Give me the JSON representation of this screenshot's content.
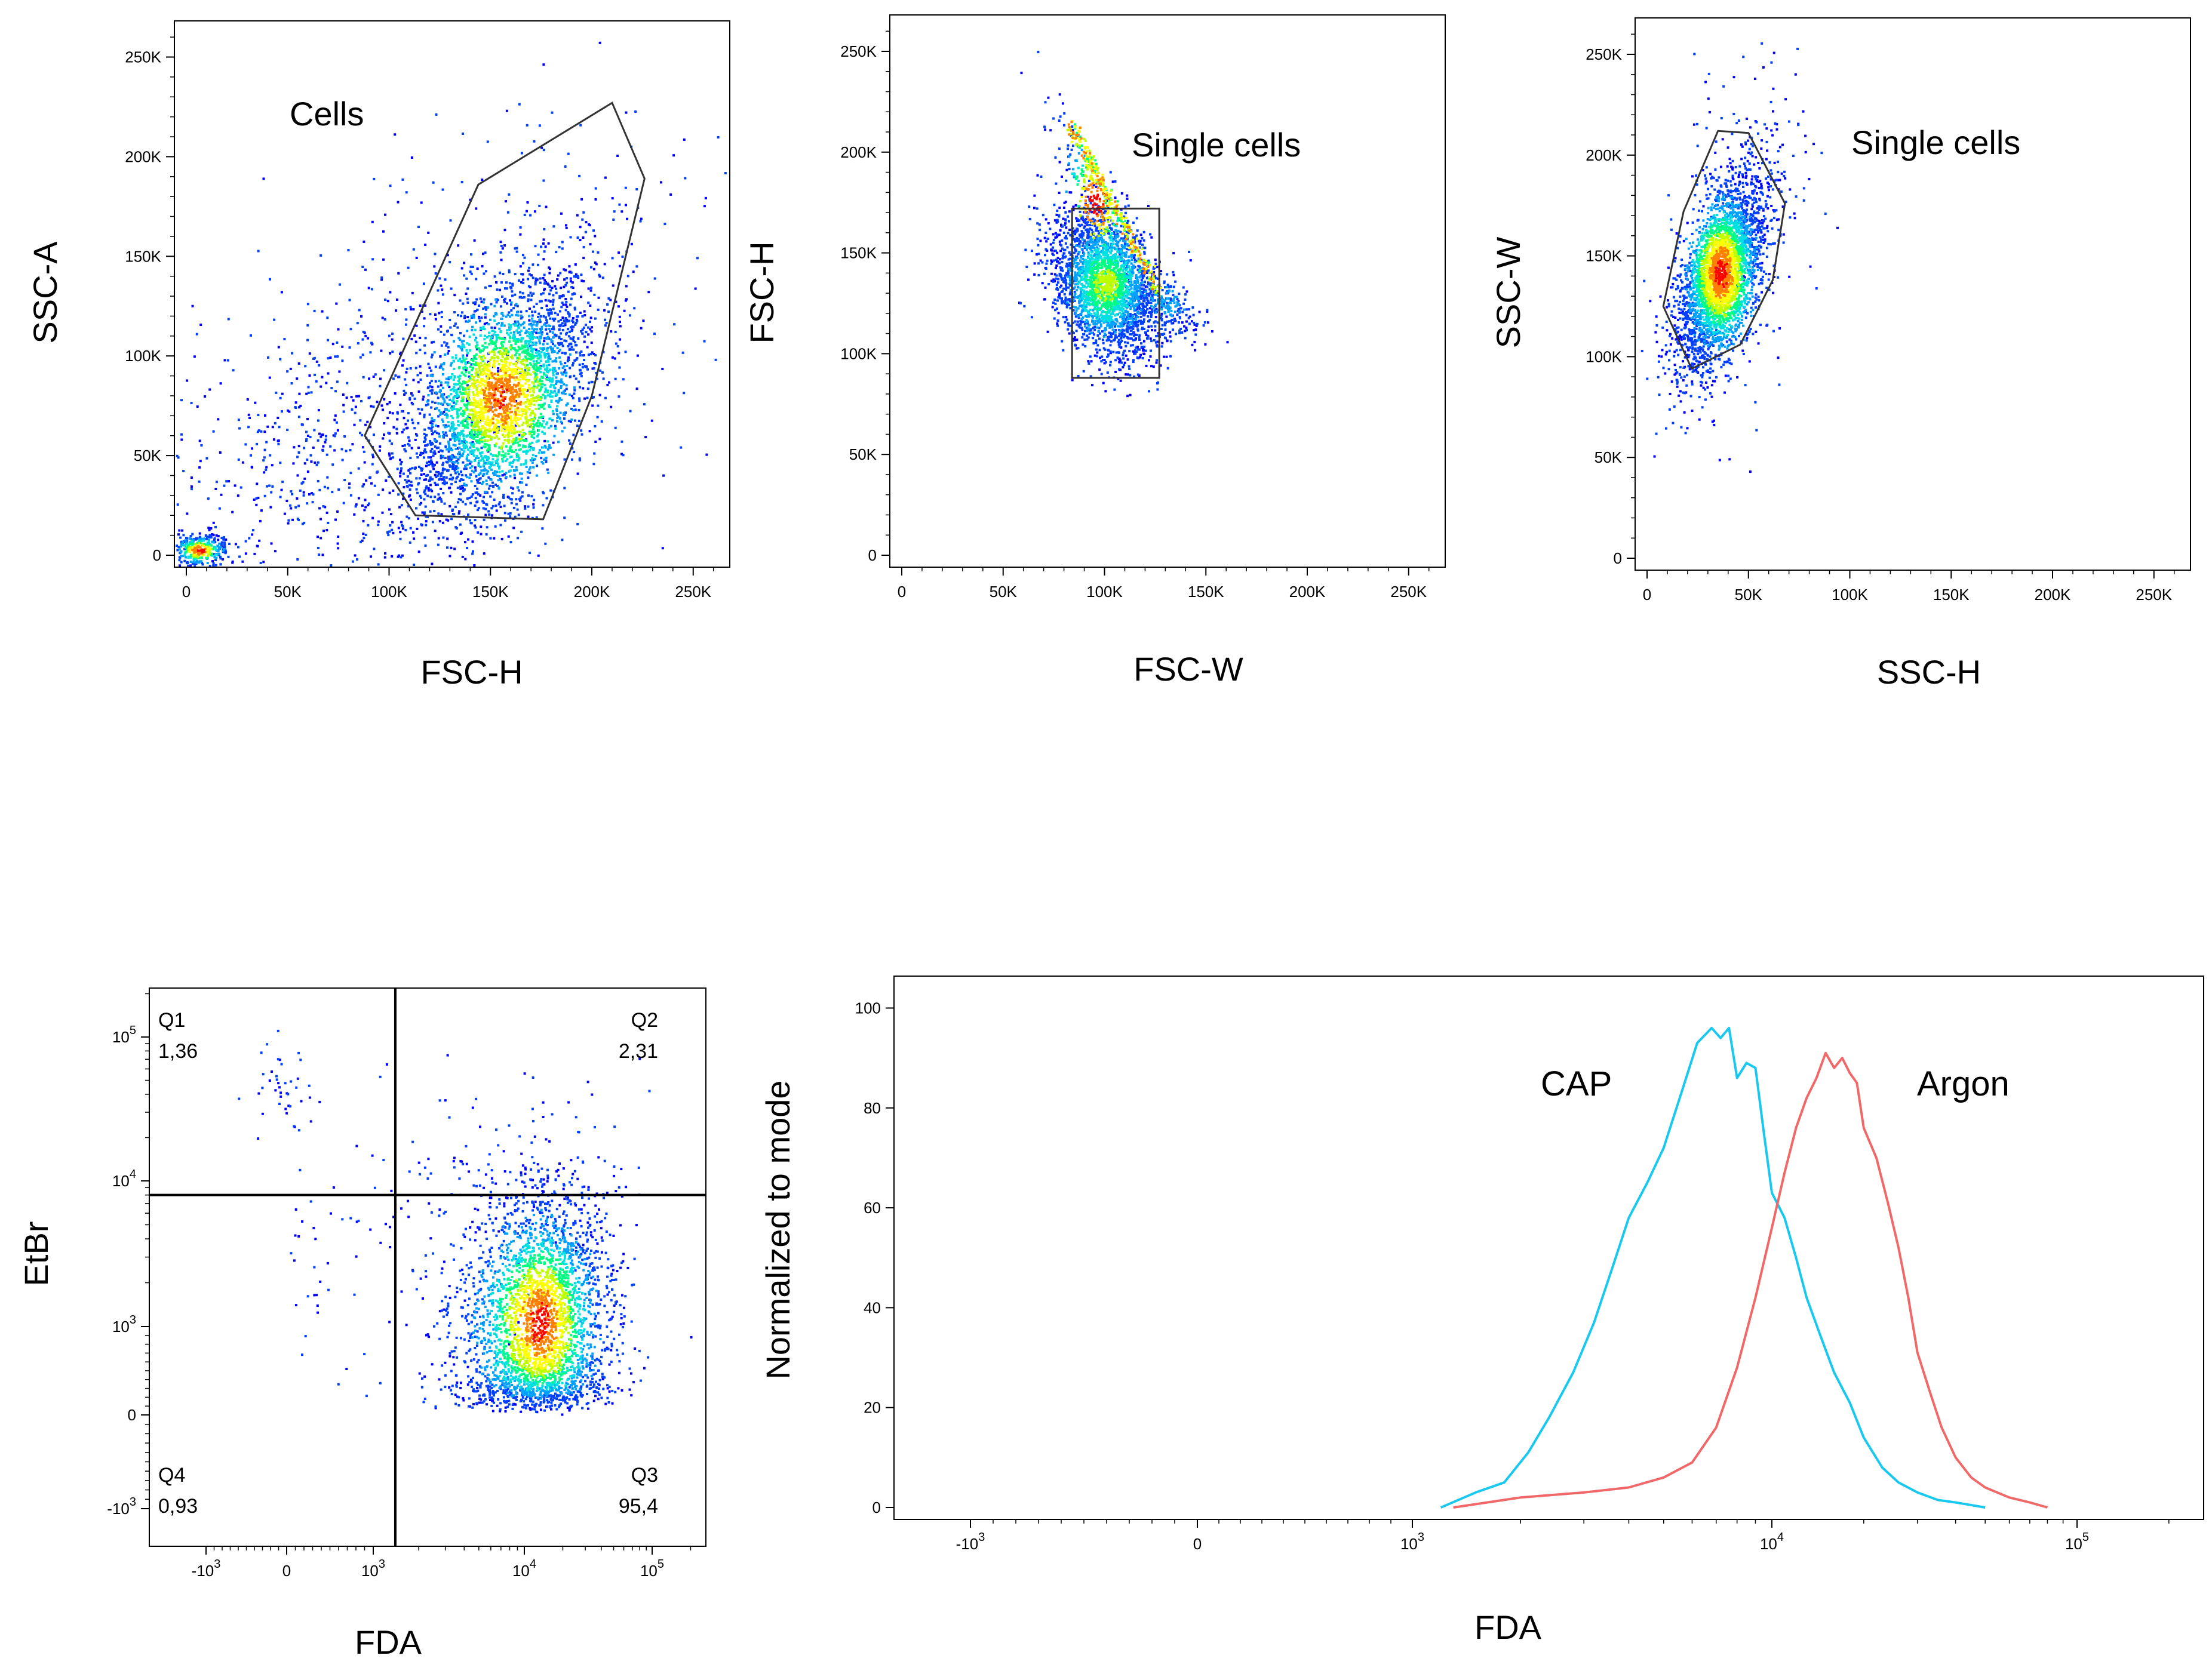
{
  "figure": {
    "colors": {
      "density": [
        "#0000ff",
        "#0040ff",
        "#00a0ff",
        "#00e0e0",
        "#00ff80",
        "#c0ff00",
        "#ffff00",
        "#ff8000",
        "#ff0000"
      ],
      "gate": "#333333",
      "cap_line": "#18c8ee",
      "argon_line": "#f06868",
      "axis": "#000000"
    }
  },
  "chart_data": [
    {
      "id": "p1",
      "type": "scatter",
      "xlabel": "FSC-H",
      "ylabel": "SSC-A",
      "xlim": [
        0,
        262144
      ],
      "ylim": [
        0,
        262144
      ],
      "xticks": [
        {
          "v": 0,
          "l": "0"
        },
        {
          "v": 50000,
          "l": "50K"
        },
        {
          "v": 100000,
          "l": "100K"
        },
        {
          "v": 150000,
          "l": "150K"
        },
        {
          "v": 200000,
          "l": "200K"
        },
        {
          "v": 250000,
          "l": "250K"
        }
      ],
      "yticks": [
        {
          "v": 0,
          "l": "0"
        },
        {
          "v": 50000,
          "l": "50K"
        },
        {
          "v": 100000,
          "l": "100K"
        },
        {
          "v": 150000,
          "l": "150K"
        },
        {
          "v": 200000,
          "l": "200K"
        },
        {
          "v": 250000,
          "l": "250K"
        }
      ],
      "gate": {
        "label": "Cells",
        "shape": "polygon",
        "points": [
          [
            88000,
            60000
          ],
          [
            144000,
            186000
          ],
          [
            210000,
            227000
          ],
          [
            226000,
            189000
          ],
          [
            200000,
            80000
          ],
          [
            176000,
            18000
          ],
          [
            113000,
            20000
          ]
        ]
      },
      "populations": [
        {
          "n": 3200,
          "cx": 155000,
          "cy": 80000,
          "sx": 22000,
          "sy": 30000,
          "rho": 0.5,
          "peak": 0.85
        },
        {
          "n": 700,
          "cx": 130000,
          "cy": 95000,
          "sx": 60000,
          "sy": 60000,
          "rho": 0.4,
          "peak": 0.0
        },
        {
          "n": 500,
          "cx": 60000,
          "cy": 40000,
          "sx": 55000,
          "sy": 45000,
          "rho": 0.5,
          "peak": 0.0
        },
        {
          "n": 350,
          "cx": 6000,
          "cy": 3000,
          "sx": 7000,
          "sy": 4000,
          "rho": 0,
          "peak": 0.9
        }
      ]
    },
    {
      "id": "p2",
      "type": "scatter",
      "xlabel": "FSC-W",
      "ylabel": "FSC-H",
      "xlim": [
        0,
        262144
      ],
      "ylim": [
        0,
        262144
      ],
      "xticks": [
        {
          "v": 0,
          "l": "0"
        },
        {
          "v": 50000,
          "l": "50K"
        },
        {
          "v": 100000,
          "l": "100K"
        },
        {
          "v": 150000,
          "l": "150K"
        },
        {
          "v": 200000,
          "l": "200K"
        },
        {
          "v": 250000,
          "l": "250K"
        }
      ],
      "yticks": [
        {
          "v": 0,
          "l": "0"
        },
        {
          "v": 50000,
          "l": "50K"
        },
        {
          "v": 100000,
          "l": "100K"
        },
        {
          "v": 150000,
          "l": "150K"
        },
        {
          "v": 200000,
          "l": "200K"
        },
        {
          "v": 250000,
          "l": "250K"
        }
      ],
      "gate": {
        "label": "Single cells",
        "shape": "rect",
        "x": [
          84000,
          127000
        ],
        "y": [
          88000,
          172000
        ]
      },
      "populations": [
        {
          "n": 2600,
          "cx": 100000,
          "cy": 135000,
          "sx": 13000,
          "sy": 18000,
          "rho": -0.3,
          "peak": 0.55
        },
        {
          "n": 260,
          "cx": 95000,
          "cy": 175000,
          "sx": 10000,
          "sy": 22000,
          "rho": -0.9,
          "peak": 0.95
        },
        {
          "n": 200,
          "cx": 130000,
          "cy": 125000,
          "sx": 10000,
          "sy": 8000,
          "rho": -0.6,
          "peak": 0.2
        }
      ]
    },
    {
      "id": "p3",
      "type": "scatter",
      "xlabel": "SSC-H",
      "ylabel": "SSC-W",
      "xlim": [
        0,
        262144
      ],
      "ylim": [
        0,
        262144
      ],
      "xticks": [
        {
          "v": 0,
          "l": "0"
        },
        {
          "v": 50000,
          "l": "50K"
        },
        {
          "v": 100000,
          "l": "100K"
        },
        {
          "v": 150000,
          "l": "150K"
        },
        {
          "v": 200000,
          "l": "200K"
        },
        {
          "v": 250000,
          "l": "250K"
        }
      ],
      "yticks": [
        {
          "v": 0,
          "l": "0"
        },
        {
          "v": 50000,
          "l": "50K"
        },
        {
          "v": 100000,
          "l": "100K"
        },
        {
          "v": 150000,
          "l": "150K"
        },
        {
          "v": 200000,
          "l": "200K"
        },
        {
          "v": 250000,
          "l": "250K"
        }
      ],
      "gate": {
        "label": "Single cells",
        "shape": "polygon",
        "points": [
          [
            8000,
            125000
          ],
          [
            18000,
            172000
          ],
          [
            35000,
            212000
          ],
          [
            50000,
            211000
          ],
          [
            68000,
            176000
          ],
          [
            62000,
            138000
          ],
          [
            46000,
            106000
          ],
          [
            22000,
            94000
          ]
        ]
      },
      "populations": [
        {
          "n": 3200,
          "cx": 36000,
          "cy": 142000,
          "sx": 11000,
          "sy": 24000,
          "rho": 0.55,
          "peak": 0.9
        },
        {
          "n": 200,
          "cx": 40000,
          "cy": 160000,
          "sx": 20000,
          "sy": 45000,
          "rho": 0.4,
          "peak": 0.0
        }
      ]
    },
    {
      "id": "p4",
      "type": "scatter",
      "xlabel": "FDA",
      "ylabel": "EtBr",
      "xlim": [
        -3000,
        200000
      ],
      "ylim": [
        -3000,
        200000
      ],
      "xticks": [
        {
          "v": -1000,
          "l": "-10",
          "sup": "3"
        },
        {
          "v": 0,
          "l": "0"
        },
        {
          "v": 1000,
          "l": "10",
          "sup": "3"
        },
        {
          "v": 10000,
          "l": "10",
          "sup": "4"
        },
        {
          "v": 100000,
          "l": "10",
          "sup": "5"
        }
      ],
      "yticks": [
        {
          "v": -1000,
          "l": "-10",
          "sup": "3"
        },
        {
          "v": 0,
          "l": "0"
        },
        {
          "v": 1000,
          "l": "10",
          "sup": "3"
        },
        {
          "v": 10000,
          "l": "10",
          "sup": "4"
        },
        {
          "v": 100000,
          "l": "10",
          "sup": "5"
        }
      ],
      "quadrant_divider": {
        "x": 1400,
        "y": 8000
      },
      "quadrants": [
        {
          "name": "Q1",
          "value": "1,36",
          "corner": "top-left"
        },
        {
          "name": "Q2",
          "value": "2,31",
          "corner": "top-right"
        },
        {
          "name": "Q3",
          "value": "95,4",
          "corner": "bottom-right"
        },
        {
          "name": "Q4",
          "value": "0,93",
          "corner": "bottom-left"
        }
      ],
      "populations": [
        {
          "n": 3200,
          "cx": 13000,
          "cy": 1100,
          "sx": 0.28,
          "sy": 0.45,
          "rho": 0.1,
          "peak": 0.9,
          "log": true
        },
        {
          "n": 120,
          "cx": 6000,
          "cy": 8000,
          "sx": 0.5,
          "sy": 0.4,
          "rho": 0,
          "peak": 0.0,
          "log": true
        },
        {
          "n": 40,
          "cx": -100,
          "cy": 40000,
          "sx": 0.2,
          "sy": 0.2,
          "rho": 0,
          "peak": 0.0,
          "log": true
        },
        {
          "n": 40,
          "cx": 400,
          "cy": 3000,
          "sx": 0.5,
          "sy": 0.6,
          "rho": 0,
          "peak": 0.0,
          "log": true
        }
      ]
    },
    {
      "id": "p5",
      "type": "line",
      "xlabel": "FDA",
      "ylabel": "Normalized to mode",
      "xlim": [
        -3000,
        200000
      ],
      "ylim": [
        0,
        104
      ],
      "xticks": [
        {
          "v": -1000,
          "l": "-10",
          "sup": "3"
        },
        {
          "v": 0,
          "l": "0"
        },
        {
          "v": 1000,
          "l": "10",
          "sup": "3"
        },
        {
          "v": 10000,
          "l": "10",
          "sup": "4"
        },
        {
          "v": 100000,
          "l": "10",
          "sup": "5"
        }
      ],
      "yticks": [
        {
          "v": 0,
          "l": "0"
        },
        {
          "v": 20,
          "l": "20"
        },
        {
          "v": 40,
          "l": "40"
        },
        {
          "v": 60,
          "l": "60"
        },
        {
          "v": 80,
          "l": "80"
        },
        {
          "v": 100,
          "l": "100"
        }
      ],
      "series": [
        {
          "name": "CAP",
          "color_key": "cap_line",
          "x": [
            1200,
            1500,
            1800,
            2100,
            2400,
            2800,
            3200,
            3600,
            4000,
            4500,
            5000,
            5600,
            6200,
            6800,
            7200,
            7600,
            8000,
            8500,
            9000,
            9500,
            10000,
            11000,
            12000,
            13000,
            14500,
            16000,
            18000,
            20000,
            23000,
            26000,
            30000,
            35000,
            40000,
            50000
          ],
          "y": [
            0,
            3,
            5,
            11,
            18,
            27,
            37,
            48,
            58,
            65,
            72,
            83,
            93,
            96,
            94,
            96,
            86,
            89,
            88,
            75,
            63,
            58,
            50,
            42,
            34,
            27,
            21,
            14,
            8,
            5,
            3,
            1.5,
            1,
            0
          ]
        },
        {
          "name": "Argon",
          "color_key": "argon_line",
          "x": [
            1300,
            2000,
            3000,
            4000,
            5000,
            6000,
            7000,
            8000,
            9000,
            10000,
            11000,
            12000,
            13000,
            14000,
            15000,
            16000,
            17000,
            18000,
            19000,
            20000,
            22000,
            24000,
            26000,
            28000,
            30000,
            33000,
            36000,
            40000,
            45000,
            50000,
            60000,
            70000,
            80000
          ],
          "y": [
            0,
            2,
            3,
            4,
            6,
            9,
            16,
            28,
            42,
            56,
            67,
            76,
            82,
            86,
            91,
            88,
            90,
            87,
            85,
            76,
            70,
            61,
            52,
            42,
            31,
            23,
            16,
            10,
            6,
            4,
            2,
            1,
            0
          ]
        }
      ]
    }
  ]
}
